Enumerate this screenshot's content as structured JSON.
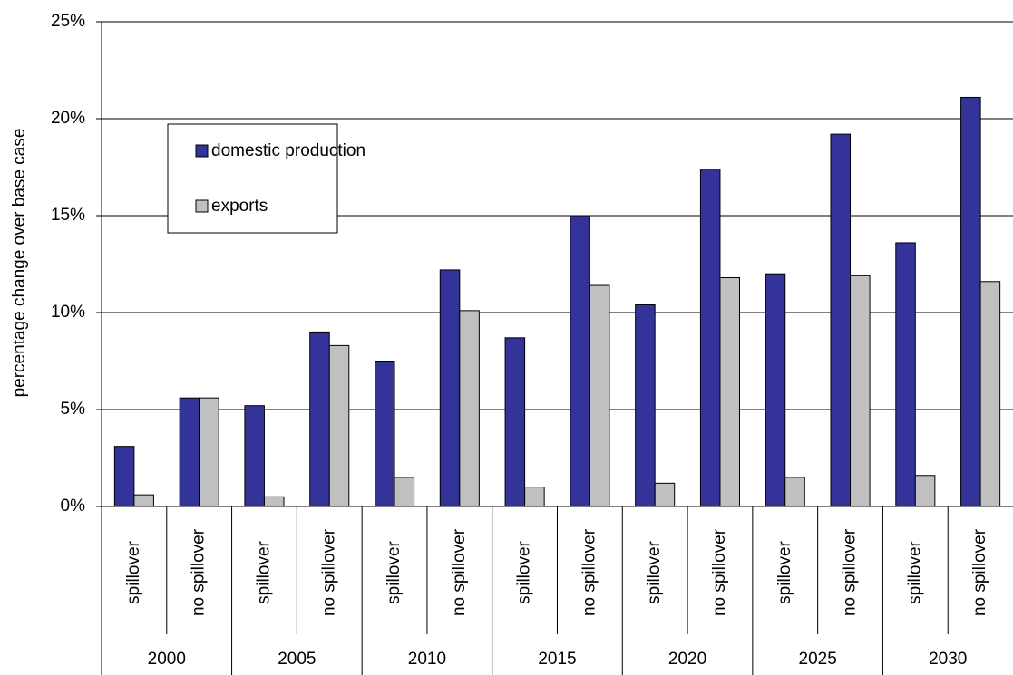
{
  "chart_data": {
    "type": "bar",
    "y_label": "percentage change over base case",
    "categories": [
      "spillover",
      "no spillover",
      "spillover",
      "no spillover",
      "spillover",
      "no spillover",
      "spillover",
      "no spillover",
      "spillover",
      "no spillover",
      "spillover",
      "no spillover",
      "spillover",
      "no spillover"
    ],
    "groups": [
      "2000",
      "2005",
      "2010",
      "2015",
      "2020",
      "2025",
      "2030"
    ],
    "series": [
      {
        "name": "domestic production",
        "color": "#333399",
        "values": [
          3.1,
          5.6,
          5.2,
          9.0,
          7.5,
          12.2,
          8.7,
          15.0,
          10.4,
          17.4,
          12.0,
          19.2,
          13.6,
          21.1
        ]
      },
      {
        "name": "exports",
        "color": "#c0c0c0",
        "values": [
          0.6,
          5.6,
          0.5,
          8.3,
          1.5,
          10.1,
          1.0,
          11.4,
          1.2,
          11.8,
          1.5,
          11.9,
          1.6,
          11.6
        ]
      }
    ],
    "ylim": [
      0,
      25
    ],
    "yticks": [
      {
        "value": 0,
        "label": "0%"
      },
      {
        "value": 5,
        "label": "5%"
      },
      {
        "value": 10,
        "label": "10%"
      },
      {
        "value": 15,
        "label": "15%"
      },
      {
        "value": 20,
        "label": "20%"
      },
      {
        "value": 25,
        "label": "25%"
      }
    ],
    "grid": true,
    "legend": "upper-left"
  }
}
